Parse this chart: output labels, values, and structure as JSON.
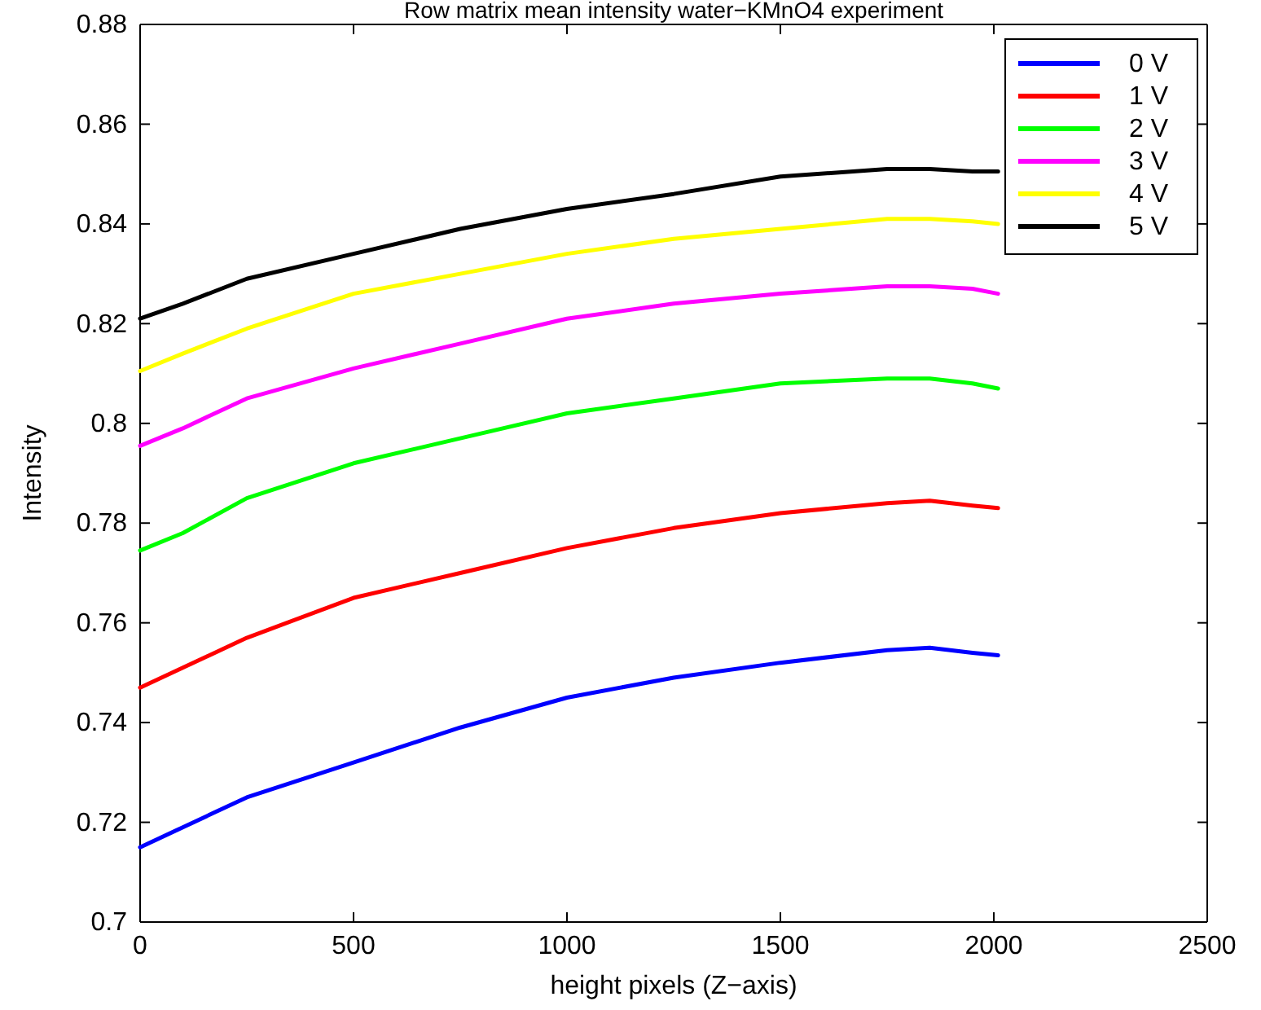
{
  "chart_data": {
    "type": "line",
    "title": "Row matrix mean intensity water−KMnO4 experiment",
    "xlabel": "height pixels (Z−axis)",
    "ylabel": "Intensity",
    "x": [
      0,
      100,
      250,
      500,
      750,
      1000,
      1250,
      1500,
      1750,
      1850,
      1950,
      2010
    ],
    "xlim": [
      0,
      2500
    ],
    "xticks": [
      0,
      500,
      1000,
      1500,
      2000,
      2500
    ],
    "ylim": [
      0.7,
      0.88
    ],
    "yticks": [
      0.7,
      0.72,
      0.74,
      0.76,
      0.78,
      0.8,
      0.82,
      0.84,
      0.86,
      0.88
    ],
    "legend": "top right",
    "grid": false,
    "series": [
      {
        "name": "0 V",
        "color": "#0000ff",
        "values": [
          0.715,
          0.719,
          0.725,
          0.732,
          0.739,
          0.745,
          0.749,
          0.752,
          0.7545,
          0.755,
          0.754,
          0.7535
        ]
      },
      {
        "name": "1 V",
        "color": "#ff0000",
        "values": [
          0.747,
          0.751,
          0.757,
          0.765,
          0.77,
          0.775,
          0.779,
          0.782,
          0.784,
          0.7845,
          0.7835,
          0.783
        ]
      },
      {
        "name": "2 V",
        "color": "#00ff00",
        "values": [
          0.7745,
          0.778,
          0.785,
          0.792,
          0.797,
          0.802,
          0.805,
          0.808,
          0.809,
          0.809,
          0.808,
          0.807
        ]
      },
      {
        "name": "3 V",
        "color": "#ff00ff",
        "values": [
          0.7955,
          0.799,
          0.805,
          0.811,
          0.816,
          0.821,
          0.824,
          0.826,
          0.8275,
          0.8275,
          0.827,
          0.826
        ]
      },
      {
        "name": "4 V",
        "color": "#ffff00",
        "values": [
          0.8105,
          0.814,
          0.819,
          0.826,
          0.83,
          0.834,
          0.837,
          0.839,
          0.841,
          0.841,
          0.8405,
          0.84
        ]
      },
      {
        "name": "5 V",
        "color": "#000000",
        "values": [
          0.821,
          0.824,
          0.829,
          0.834,
          0.839,
          0.843,
          0.846,
          0.8495,
          0.851,
          0.851,
          0.8505,
          0.8505
        ]
      }
    ]
  }
}
